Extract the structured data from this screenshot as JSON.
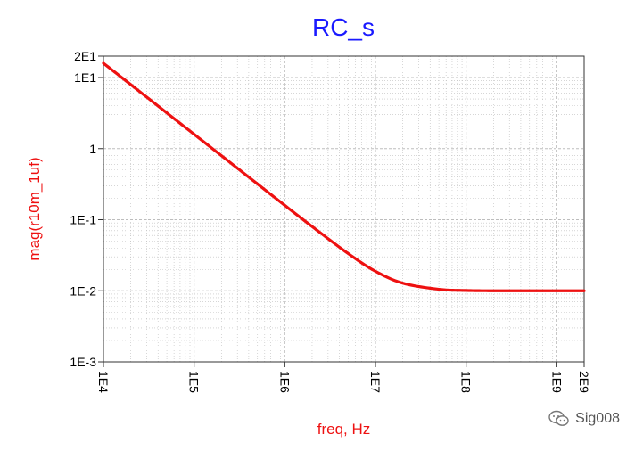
{
  "chart_data": {
    "type": "line",
    "title": "RC_s",
    "xlabel": "freq, Hz",
    "ylabel": "mag(r10m_1uf)",
    "xscale": "log",
    "yscale": "log",
    "xlim": [
      10000,
      2000000000
    ],
    "ylim": [
      0.001,
      20
    ],
    "grid": true,
    "x_ticks": [
      {
        "value": 10000,
        "label": "1E4"
      },
      {
        "value": 100000,
        "label": "1E5"
      },
      {
        "value": 1000000,
        "label": "1E6"
      },
      {
        "value": 10000000,
        "label": "1E7"
      },
      {
        "value": 100000000,
        "label": "1E8"
      },
      {
        "value": 1000000000,
        "label": "1E9"
      },
      {
        "value": 2000000000,
        "label": "2E9"
      }
    ],
    "y_ticks": [
      {
        "value": 20,
        "label": "2E1"
      },
      {
        "value": 10,
        "label": "1E1"
      },
      {
        "value": 1,
        "label": "1"
      },
      {
        "value": 0.1,
        "label": "1E-1"
      },
      {
        "value": 0.01,
        "label": "1E-2"
      },
      {
        "value": 0.001,
        "label": "1E-3"
      }
    ],
    "series": [
      {
        "color": "#ee1111",
        "x": [
          10000,
          20000,
          50000,
          100000,
          200000,
          500000,
          1000000,
          2000000,
          5000000,
          10000000,
          20000000,
          50000000,
          100000000,
          200000000,
          500000000,
          1000000000,
          2000000000
        ],
        "y": [
          15.9,
          7.96,
          3.18,
          1.59,
          0.796,
          0.318,
          0.159,
          0.0802,
          0.0334,
          0.0188,
          0.0128,
          0.0105,
          0.0101,
          0.01,
          0.01,
          0.01,
          0.01
        ]
      }
    ]
  },
  "colors": {
    "title": "#1a1aff",
    "axis_label": "#ee1111",
    "curve": "#ee1111",
    "grid": "#bdbdbd",
    "tick_text": "#000000"
  },
  "watermark": {
    "text": "Sig008",
    "icon": "wechat-icon"
  }
}
